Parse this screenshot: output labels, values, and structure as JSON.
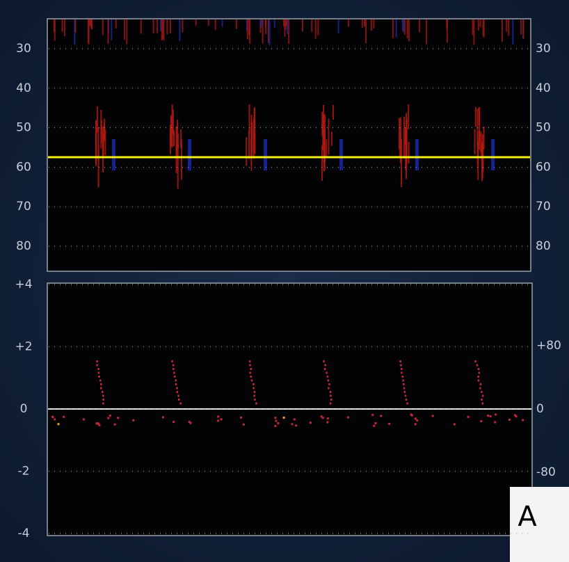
{
  "top_panel": {
    "left_ticks": [
      "30",
      "40",
      "50",
      "60",
      "70",
      "80"
    ],
    "right_ticks": [
      "30",
      "40",
      "50",
      "60",
      "70",
      "80"
    ]
  },
  "bottom_panel": {
    "left_ticks": [
      "+4",
      "+2",
      "0",
      "-2",
      "-4"
    ],
    "right_ticks": [
      "+80",
      "0",
      "-80"
    ]
  },
  "corner_label": "A"
}
